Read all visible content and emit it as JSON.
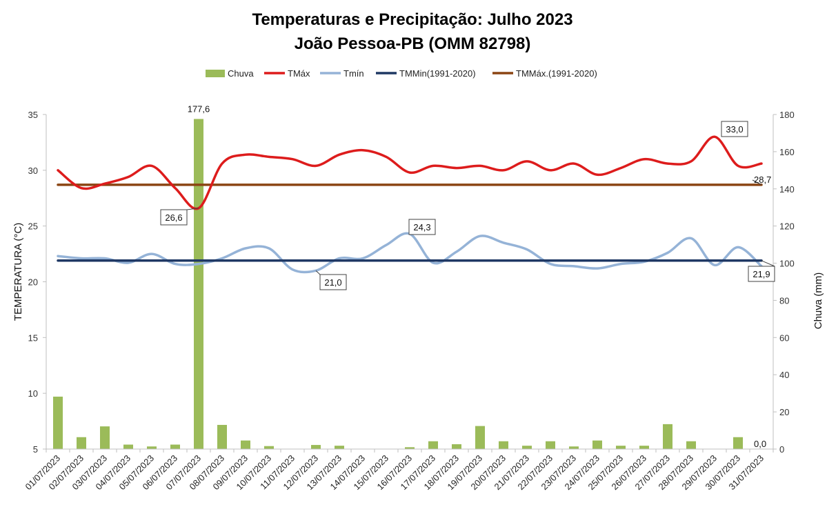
{
  "chart_data": {
    "type": "bar+line",
    "title": "Temperaturas e Precipitação: Julho 2023",
    "subtitle": "João Pessoa-PB (OMM 82798)",
    "left_axis": {
      "label": "TEMPERATURA (°C)",
      "range": [
        5,
        35
      ],
      "ticks": [
        "5",
        "10",
        "15",
        "20",
        "25",
        "30",
        "35"
      ]
    },
    "right_axis": {
      "label": "Chuva (mm)",
      "range": [
        0,
        180
      ],
      "ticks": [
        "0",
        "20",
        "40",
        "60",
        "80",
        "100",
        "120",
        "140",
        "160",
        "180"
      ]
    },
    "categories": [
      "01/07/2023",
      "02/07/2023",
      "03/07/2023",
      "04/07/2023",
      "05/07/2023",
      "06/07/2023",
      "07/07/2023",
      "08/07/2023",
      "09/07/2023",
      "10/07/2023",
      "11/07/2023",
      "12/07/2023",
      "13/07/2023",
      "14/07/2023",
      "15/07/2023",
      "16/07/2023",
      "17/07/2023",
      "18/07/2023",
      "19/07/2023",
      "20/07/2023",
      "21/07/2023",
      "22/07/2023",
      "23/07/2023",
      "24/07/2023",
      "25/07/2023",
      "26/07/2023",
      "27/07/2023",
      "28/07/2023",
      "29/07/2023",
      "30/07/2023",
      "31/07/2023"
    ],
    "series": [
      {
        "name": "Chuva",
        "type": "bar",
        "axis": "right",
        "color": "#9bbb59",
        "values": [
          28.2,
          6.4,
          12.2,
          2.4,
          1.4,
          2.4,
          177.6,
          13.0,
          4.6,
          1.6,
          0.0,
          2.2,
          1.8,
          0.0,
          0.0,
          1.0,
          4.2,
          2.6,
          12.4,
          4.2,
          1.8,
          4.2,
          1.4,
          4.6,
          1.8,
          1.8,
          13.4,
          4.2,
          0.0,
          6.4,
          0.0
        ]
      },
      {
        "name": "TMáx",
        "type": "line",
        "axis": "left",
        "color": "#dd1c1c",
        "values": [
          30.0,
          28.4,
          28.8,
          29.4,
          30.4,
          28.4,
          26.6,
          30.6,
          31.4,
          31.2,
          31.0,
          30.4,
          31.4,
          31.8,
          31.2,
          29.8,
          30.4,
          30.2,
          30.4,
          30.0,
          30.8,
          30.0,
          30.6,
          29.6,
          30.2,
          31.0,
          30.6,
          30.8,
          33.0,
          30.4,
          30.6
        ]
      },
      {
        "name": "Tmín",
        "type": "line",
        "axis": "left",
        "color": "#95b3d7",
        "values": [
          22.3,
          22.1,
          22.1,
          21.7,
          22.5,
          21.6,
          21.6,
          22.1,
          23.0,
          23.0,
          21.1,
          21.0,
          22.1,
          22.1,
          23.3,
          24.3,
          21.7,
          22.7,
          24.1,
          23.5,
          22.9,
          21.6,
          21.4,
          21.2,
          21.6,
          21.8,
          22.6,
          23.9,
          21.5,
          23.1,
          21.4
        ]
      },
      {
        "name": "TMMin(1991-2020)",
        "type": "line",
        "axis": "left",
        "color": "#1f3864",
        "values": [
          21.9,
          21.9,
          21.9,
          21.9,
          21.9,
          21.9,
          21.9,
          21.9,
          21.9,
          21.9,
          21.9,
          21.9,
          21.9,
          21.9,
          21.9,
          21.9,
          21.9,
          21.9,
          21.9,
          21.9,
          21.9,
          21.9,
          21.9,
          21.9,
          21.9,
          21.9,
          21.9,
          21.9,
          21.9,
          21.9,
          21.9
        ]
      },
      {
        "name": "TMMáx.(1991-2020)",
        "type": "line",
        "axis": "left",
        "color": "#8b4513",
        "values": [
          28.7,
          28.7,
          28.7,
          28.7,
          28.7,
          28.7,
          28.7,
          28.7,
          28.7,
          28.7,
          28.7,
          28.7,
          28.7,
          28.7,
          28.7,
          28.7,
          28.7,
          28.7,
          28.7,
          28.7,
          28.7,
          28.7,
          28.7,
          28.7,
          28.7,
          28.7,
          28.7,
          28.7,
          28.7,
          28.7,
          28.7
        ]
      }
    ],
    "annotations": [
      {
        "text": "177,6",
        "series": "Chuva",
        "index": 6,
        "boxed": false
      },
      {
        "text": "26,6",
        "series": "TMáx",
        "index": 6,
        "boxed": true
      },
      {
        "text": "33,0",
        "series": "TMáx",
        "index": 28,
        "boxed": true
      },
      {
        "text": "24,3",
        "series": "Tmín",
        "index": 15,
        "boxed": true
      },
      {
        "text": "21,0",
        "series": "Tmín",
        "index": 11,
        "boxed": true
      },
      {
        "text": "28,7",
        "series": "TMMáx.(1991-2020)",
        "index": 30,
        "boxed": false
      },
      {
        "text": "21,9",
        "series": "TMMin(1991-2020)",
        "index": 30,
        "boxed": true
      },
      {
        "text": "0,0",
        "series": "Chuva",
        "index": 30,
        "boxed": false
      }
    ],
    "legend": [
      "Chuva",
      "TMáx",
      "Tmín",
      "TMMin(1991-2020)",
      "TMMáx.(1991-2020)"
    ],
    "legend_position": "top",
    "grid": false
  }
}
